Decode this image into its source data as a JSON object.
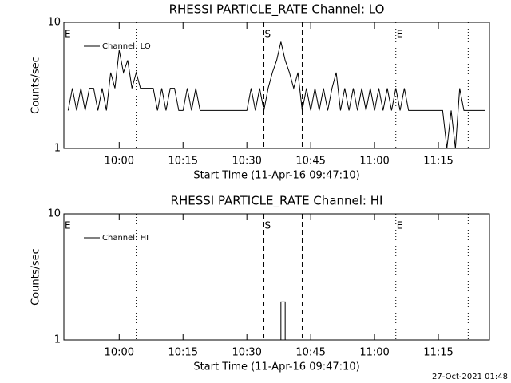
{
  "chart_data": [
    {
      "type": "line",
      "title": "RHESSI PARTICLE_RATE Channel: LO",
      "xlabel": "Start Time (11-Apr-16 09:47:10)",
      "ylabel": "Counts/sec",
      "log_y": true,
      "ylim": [
        1,
        10
      ],
      "yticks": [
        1,
        10
      ],
      "xlim": [
        "09:47",
        "11:27"
      ],
      "xticks": [
        "10:00",
        "10:15",
        "10:30",
        "10:45",
        "11:00",
        "11:15"
      ],
      "legend": "upper left",
      "markers": [
        {
          "time": "10:04",
          "style": "dotted"
        },
        {
          "time": "10:34",
          "style": "dashed"
        },
        {
          "time": "10:43",
          "style": "dashed"
        },
        {
          "time": "11:05",
          "style": "dotted"
        },
        {
          "time": "11:22",
          "style": "dotted"
        }
      ],
      "flags": [
        {
          "time": "09:47",
          "label": "E"
        },
        {
          "time": "10:34",
          "label": "S"
        },
        {
          "time": "11:05",
          "label": "E"
        }
      ],
      "x": [
        "09:48",
        "09:49",
        "09:50",
        "09:51",
        "09:52",
        "09:53",
        "09:54",
        "09:55",
        "09:56",
        "09:57",
        "09:58",
        "09:59",
        "10:00",
        "10:01",
        "10:02",
        "10:03",
        "10:04",
        "10:05",
        "10:06",
        "10:07",
        "10:08",
        "10:09",
        "10:10",
        "10:11",
        "10:12",
        "10:13",
        "10:14",
        "10:15",
        "10:16",
        "10:17",
        "10:18",
        "10:19",
        "10:20",
        "10:21",
        "10:22",
        "10:23",
        "10:24",
        "10:25",
        "10:26",
        "10:27",
        "10:28",
        "10:29",
        "10:30",
        "10:31",
        "10:32",
        "10:33",
        "10:34",
        "10:35",
        "10:36",
        "10:37",
        "10:38",
        "10:39",
        "10:40",
        "10:41",
        "10:42",
        "10:43",
        "10:44",
        "10:45",
        "10:46",
        "10:47",
        "10:48",
        "10:49",
        "10:50",
        "10:51",
        "10:52",
        "10:53",
        "10:54",
        "10:55",
        "10:56",
        "10:57",
        "10:58",
        "10:59",
        "11:00",
        "11:01",
        "11:02",
        "11:03",
        "11:04",
        "11:05",
        "11:06",
        "11:07",
        "11:08",
        "11:09",
        "11:10",
        "11:11",
        "11:12",
        "11:13",
        "11:14",
        "11:15",
        "11:16",
        "11:17",
        "11:18",
        "11:19",
        "11:20",
        "11:21",
        "11:22",
        "11:23",
        "11:24",
        "11:25",
        "11:26"
      ],
      "series": [
        {
          "name": "Channel: LO",
          "color": "#000000",
          "values": [
            2,
            3,
            2,
            3,
            2,
            3,
            3,
            2,
            3,
            2,
            4,
            3,
            6,
            4,
            5,
            3,
            4,
            3,
            3,
            3,
            3,
            2,
            3,
            2,
            3,
            3,
            2,
            2,
            3,
            2,
            3,
            2,
            2,
            2,
            2,
            2,
            2,
            2,
            2,
            2,
            2,
            2,
            2,
            3,
            2,
            3,
            2,
            3,
            4,
            5,
            7,
            5,
            4,
            3,
            4,
            2,
            3,
            2,
            3,
            2,
            3,
            2,
            3,
            4,
            2,
            3,
            2,
            3,
            2,
            3,
            2,
            3,
            2,
            3,
            2,
            3,
            2,
            3,
            2,
            3,
            2,
            2,
            2,
            2,
            2,
            2,
            2,
            2,
            2,
            1,
            2,
            1,
            3,
            2,
            2,
            2,
            2,
            2,
            2
          ]
        }
      ]
    },
    {
      "type": "line",
      "title": "RHESSI PARTICLE_RATE Channel: HI",
      "xlabel": "Start Time (11-Apr-16 09:47:10)",
      "ylabel": "Counts/sec",
      "log_y": true,
      "ylim": [
        1,
        10
      ],
      "yticks": [
        1,
        10
      ],
      "xlim": [
        "09:47",
        "11:27"
      ],
      "xticks": [
        "10:00",
        "10:15",
        "10:30",
        "10:45",
        "11:00",
        "11:15"
      ],
      "legend": "upper left",
      "markers": [
        {
          "time": "10:04",
          "style": "dotted"
        },
        {
          "time": "10:34",
          "style": "dashed"
        },
        {
          "time": "10:43",
          "style": "dashed"
        },
        {
          "time": "11:05",
          "style": "dotted"
        },
        {
          "time": "11:22",
          "style": "dotted"
        }
      ],
      "flags": [
        {
          "time": "09:47",
          "label": "E"
        },
        {
          "time": "10:34",
          "label": "S"
        },
        {
          "time": "11:05",
          "label": "E"
        }
      ],
      "x": [
        "10:38",
        "10:38",
        "10:39",
        "10:39"
      ],
      "series": [
        {
          "name": "Channel: HI",
          "color": "#000000",
          "values": [
            1,
            2,
            2,
            1
          ]
        }
      ]
    }
  ],
  "footer": "27-Oct-2021 01:48"
}
